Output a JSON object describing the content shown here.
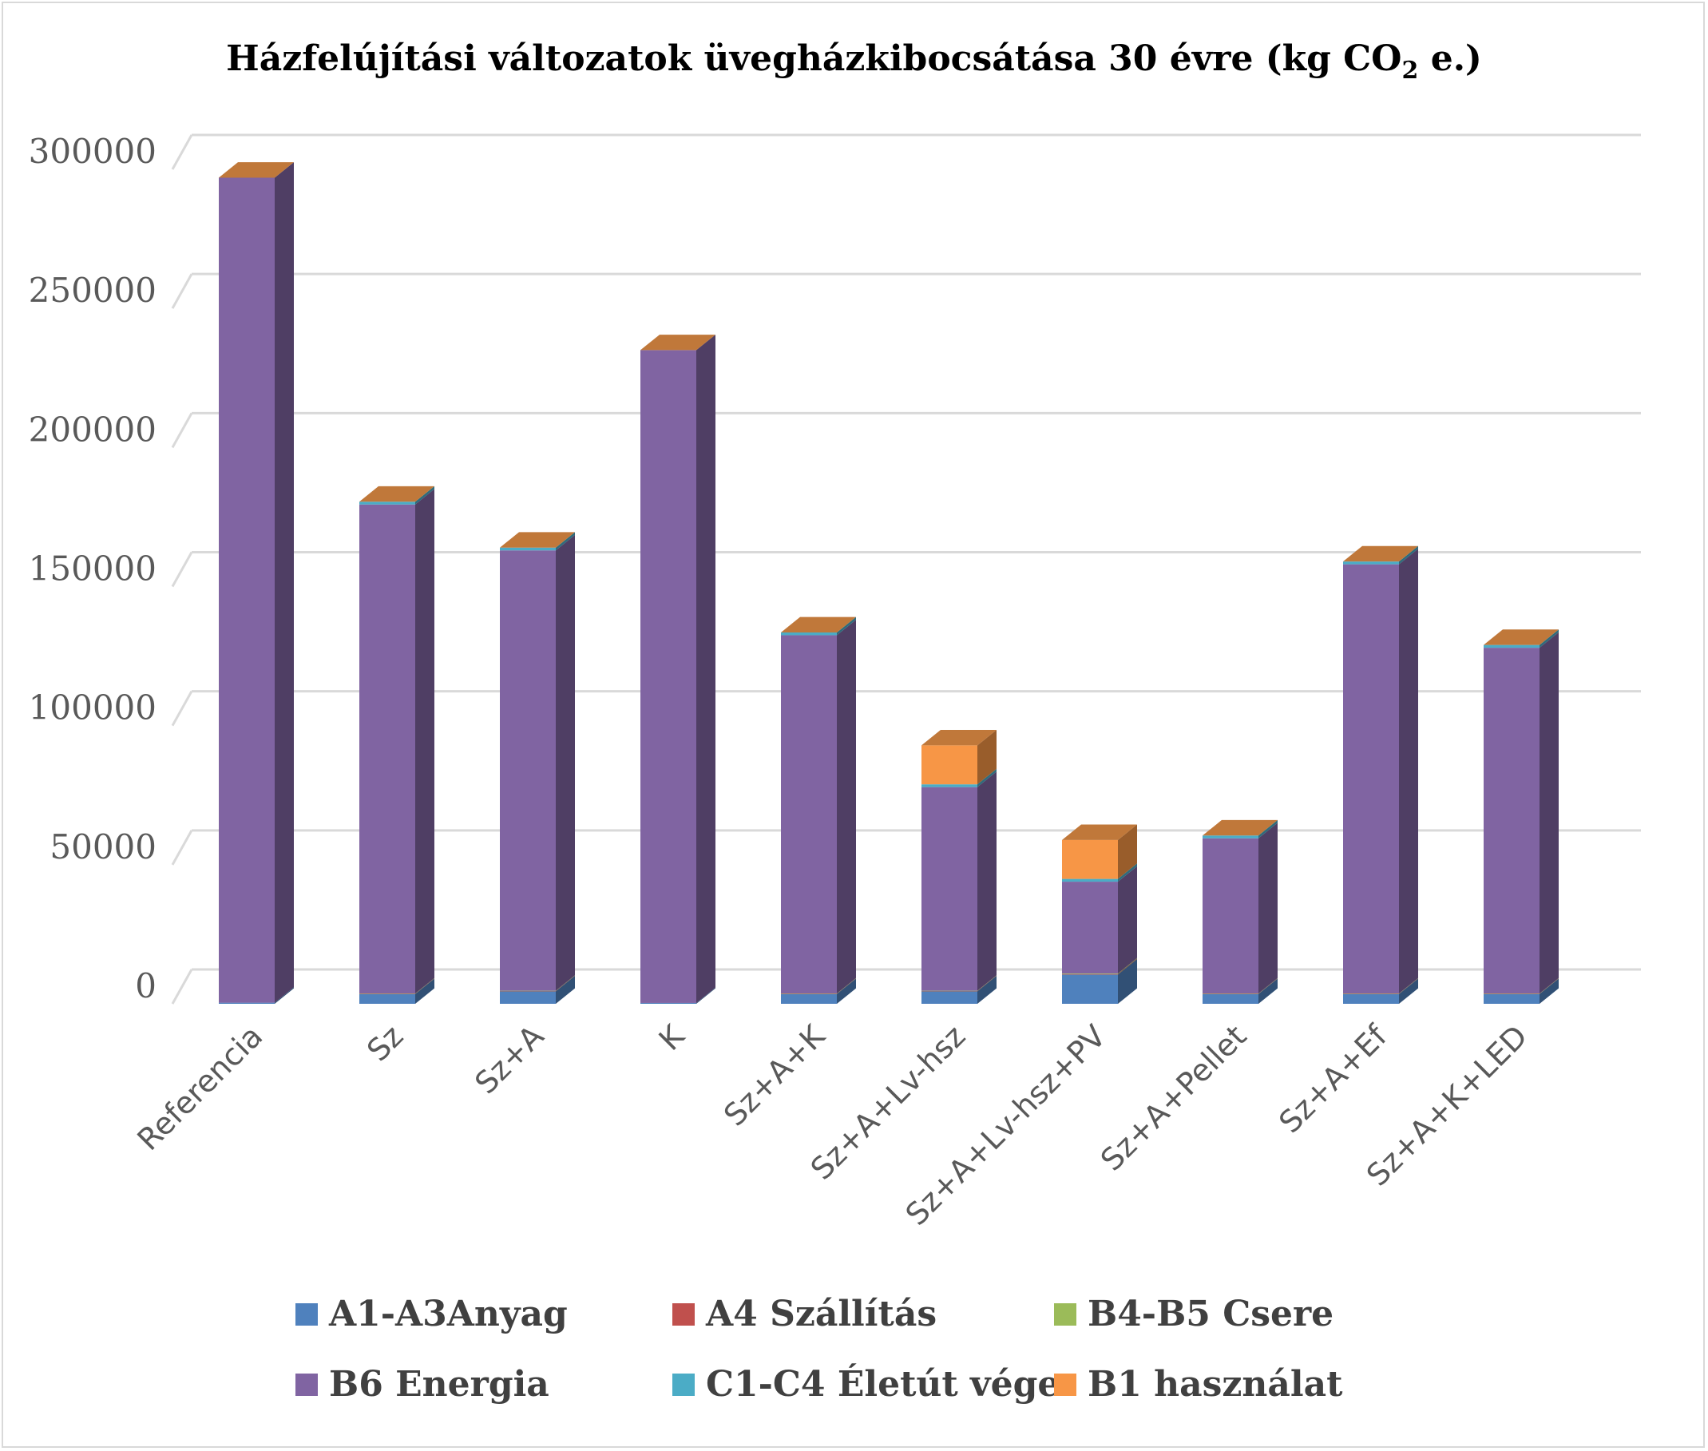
{
  "chart_data": {
    "type": "bar",
    "stacked": true,
    "three_d": true,
    "title_main": "Házfelújítási változatok üvegházkibocsátása 30 évre (kg CO",
    "title_sub": "2",
    "title_end": " e.)",
    "xlabel": "",
    "ylabel": "",
    "ylim": [
      0,
      300000
    ],
    "yticks": [
      0,
      50000,
      100000,
      150000,
      200000,
      250000,
      300000
    ],
    "grid": true,
    "legend_position": "bottom",
    "categories": [
      "Referencia",
      "Sz",
      "Sz+A",
      "K",
      "Sz+A+K",
      "Sz+A+Lv-hsz",
      "Sz+A+Lv-hsz+PV",
      "Sz+A+Pellet",
      "Sz+A+Ef",
      "Sz+A+K+LED"
    ],
    "series": [
      {
        "name": "A1-A3Anyag",
        "color": "#4f81bd",
        "values": [
          400,
          3500,
          4500,
          300,
          3500,
          4500,
          10500,
          3500,
          3500,
          3500
        ]
      },
      {
        "name": "A4 Szállítás",
        "color": "#c0504d",
        "values": [
          0,
          100,
          100,
          0,
          100,
          100,
          200,
          100,
          100,
          100
        ]
      },
      {
        "name": "B4-B5 Csere",
        "color": "#9bbb59",
        "values": [
          0,
          100,
          100,
          0,
          100,
          100,
          200,
          100,
          100,
          100
        ]
      },
      {
        "name": "B6 Energia",
        "color": "#8064a2",
        "values": [
          296600,
          175800,
          158300,
          234700,
          128800,
          73200,
          33000,
          55800,
          154300,
          124300
        ]
      },
      {
        "name": "C1-C4 Életút vége",
        "color": "#4bacc6",
        "values": [
          0,
          1000,
          1000,
          0,
          1000,
          1000,
          1000,
          1000,
          1000,
          1000
        ]
      },
      {
        "name": "B1 használat",
        "color": "#f79646",
        "values": [
          0,
          0,
          0,
          0,
          0,
          14000,
          14000,
          0,
          0,
          0
        ]
      }
    ]
  }
}
